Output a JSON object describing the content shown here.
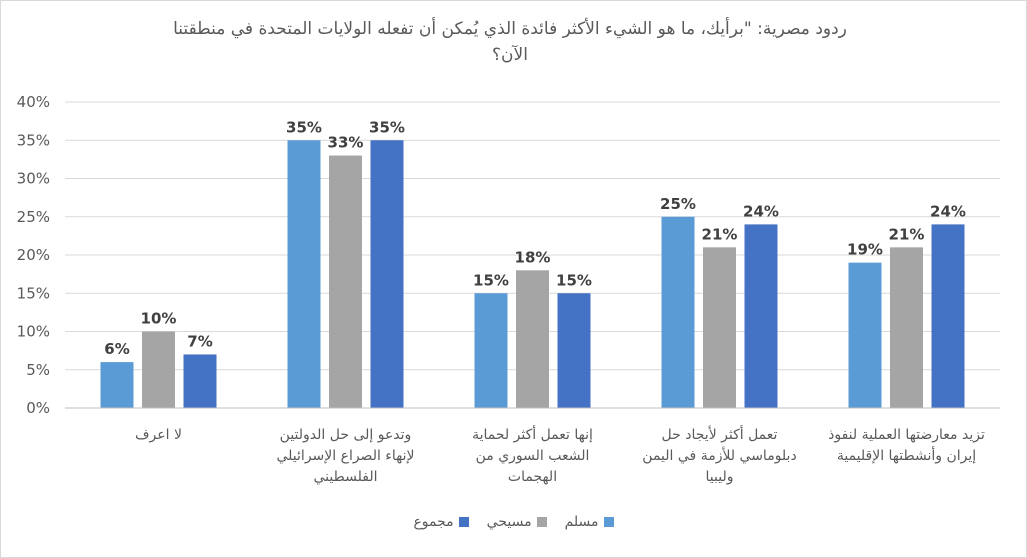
{
  "chart_data": {
    "type": "bar",
    "title_lines": [
      "ردود مصرية: \"برأيك، ما هو الشيء الأكثر فائدة الذي  يُمكن أن تفعله الولايات المتحدة في منطقتنا",
      "الآن؟"
    ],
    "categories": [
      [
        "لا اعرف"
      ],
      [
        "وتدعو إلى حل الدولتين",
        "لإنهاء الصراع الإسرائيلي",
        "الفلسطيني"
      ],
      [
        "إنها تعمل أكثر لحماية",
        "الشعب السوري من",
        "الهجمات"
      ],
      [
        "تعمل أكثر لأيجاد حل",
        "دبلوماسي للأزمة في اليمن",
        "وليبيا"
      ],
      [
        "تزيد معارضتها العملية لنفوذ",
        "إيران وأنشطتها الإقليمية"
      ]
    ],
    "series": [
      {
        "name": "مسلم",
        "color": "#5b9bd5",
        "values": [
          6,
          35,
          15,
          25,
          19
        ]
      },
      {
        "name": "مسيحي",
        "color": "#a5a5a5",
        "values": [
          10,
          33,
          18,
          21,
          21
        ]
      },
      {
        "name": "مجموع",
        "color": "#4472c4",
        "values": [
          7,
          35,
          15,
          24,
          24
        ]
      }
    ],
    "data_labels": [
      [
        "6%",
        "35%",
        "15%",
        "25%",
        "19%"
      ],
      [
        "10%",
        "33%",
        "18%",
        "21%",
        "21%"
      ],
      [
        "7%",
        "35%",
        "15%",
        "24%",
        "24%"
      ]
    ],
    "y_ticks": [
      0,
      5,
      10,
      15,
      20,
      25,
      30,
      35,
      40
    ],
    "y_tick_labels": [
      "0%",
      "5%",
      "10%",
      "15%",
      "20%",
      "25%",
      "30%",
      "35%",
      "40%"
    ],
    "ylim": [
      0,
      40
    ],
    "grid": true,
    "legend": "bottom"
  }
}
